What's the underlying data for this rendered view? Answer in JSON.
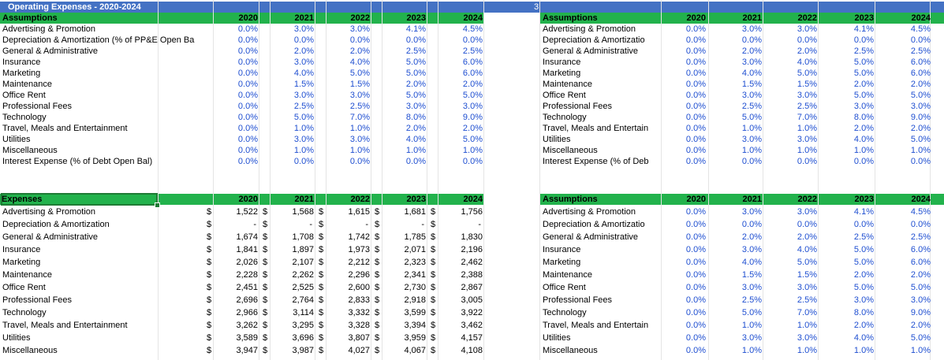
{
  "title": "Operating Expenses - 2020-2024",
  "column_marker": "3",
  "years": [
    "2020",
    "2021",
    "2022",
    "2023",
    "2024"
  ],
  "top_left": {
    "header": "Assumptions",
    "rows": [
      {
        "label": "Advertising & Promotion",
        "values": [
          "0.0%",
          "3.0%",
          "3.0%",
          "4.1%",
          "4.5%"
        ]
      },
      {
        "label": "Depreciation & Amortization (% of PP&E Open Ba",
        "values": [
          "0.0%",
          "0.0%",
          "0.0%",
          "0.0%",
          "0.0%"
        ]
      },
      {
        "label": "General & Administrative",
        "values": [
          "0.0%",
          "2.0%",
          "2.0%",
          "2.5%",
          "2.5%"
        ]
      },
      {
        "label": "Insurance",
        "values": [
          "0.0%",
          "3.0%",
          "4.0%",
          "5.0%",
          "6.0%"
        ]
      },
      {
        "label": "Marketing",
        "values": [
          "0.0%",
          "4.0%",
          "5.0%",
          "5.0%",
          "6.0%"
        ]
      },
      {
        "label": "Maintenance",
        "values": [
          "0.0%",
          "1.5%",
          "1.5%",
          "2.0%",
          "2.0%"
        ]
      },
      {
        "label": "Office Rent",
        "values": [
          "0.0%",
          "3.0%",
          "3.0%",
          "5.0%",
          "5.0%"
        ]
      },
      {
        "label": "Professional Fees",
        "values": [
          "0.0%",
          "2.5%",
          "2.5%",
          "3.0%",
          "3.0%"
        ]
      },
      {
        "label": "Technology",
        "values": [
          "0.0%",
          "5.0%",
          "7.0%",
          "8.0%",
          "9.0%"
        ]
      },
      {
        "label": "Travel, Meals and Entertainment",
        "values": [
          "0.0%",
          "1.0%",
          "1.0%",
          "2.0%",
          "2.0%"
        ]
      },
      {
        "label": "Utilities",
        "values": [
          "0.0%",
          "3.0%",
          "3.0%",
          "4.0%",
          "5.0%"
        ]
      },
      {
        "label": "Miscellaneous",
        "values": [
          "0.0%",
          "1.0%",
          "1.0%",
          "1.0%",
          "1.0%"
        ]
      },
      {
        "label": "Interest Expense (% of Debt Open Bal)",
        "values": [
          "0.0%",
          "0.0%",
          "0.0%",
          "0.0%",
          "0.0%"
        ]
      }
    ]
  },
  "top_right": {
    "header": "Assumptions",
    "rows": [
      {
        "label": "Advertising & Promotion",
        "values": [
          "0.0%",
          "3.0%",
          "3.0%",
          "4.1%",
          "4.5%"
        ]
      },
      {
        "label": "Depreciation & Amortizatio",
        "values": [
          "0.0%",
          "0.0%",
          "0.0%",
          "0.0%",
          "0.0%"
        ]
      },
      {
        "label": "General & Administrative",
        "values": [
          "0.0%",
          "2.0%",
          "2.0%",
          "2.5%",
          "2.5%"
        ]
      },
      {
        "label": "Insurance",
        "values": [
          "0.0%",
          "3.0%",
          "4.0%",
          "5.0%",
          "6.0%"
        ]
      },
      {
        "label": "Marketing",
        "values": [
          "0.0%",
          "4.0%",
          "5.0%",
          "5.0%",
          "6.0%"
        ]
      },
      {
        "label": "Maintenance",
        "values": [
          "0.0%",
          "1.5%",
          "1.5%",
          "2.0%",
          "2.0%"
        ]
      },
      {
        "label": "Office Rent",
        "values": [
          "0.0%",
          "3.0%",
          "3.0%",
          "5.0%",
          "5.0%"
        ]
      },
      {
        "label": "Professional Fees",
        "values": [
          "0.0%",
          "2.5%",
          "2.5%",
          "3.0%",
          "3.0%"
        ]
      },
      {
        "label": "Technology",
        "values": [
          "0.0%",
          "5.0%",
          "7.0%",
          "8.0%",
          "9.0%"
        ]
      },
      {
        "label": "Travel, Meals and Entertain",
        "values": [
          "0.0%",
          "1.0%",
          "1.0%",
          "2.0%",
          "2.0%"
        ]
      },
      {
        "label": "Utilities",
        "values": [
          "0.0%",
          "3.0%",
          "3.0%",
          "4.0%",
          "5.0%"
        ]
      },
      {
        "label": "Miscellaneous",
        "values": [
          "0.0%",
          "1.0%",
          "1.0%",
          "1.0%",
          "1.0%"
        ]
      },
      {
        "label": "Interest Expense (% of Deb",
        "values": [
          "0.0%",
          "0.0%",
          "0.0%",
          "0.0%",
          "0.0%"
        ]
      }
    ]
  },
  "bottom_left": {
    "header": "Expenses",
    "currency": "$",
    "rows": [
      {
        "label": "Advertising & Promotion",
        "values": [
          "1,522",
          "1,568",
          "1,615",
          "1,681",
          "1,756"
        ]
      },
      {
        "label": "Depreciation & Amortization",
        "values": [
          "-",
          "-",
          "-",
          "-",
          "-"
        ]
      },
      {
        "label": "General & Administrative",
        "values": [
          "1,674",
          "1,708",
          "1,742",
          "1,785",
          "1,830"
        ]
      },
      {
        "label": "Insurance",
        "values": [
          "1,841",
          "1,897",
          "1,973",
          "2,071",
          "2,196"
        ]
      },
      {
        "label": "Marketing",
        "values": [
          "2,026",
          "2,107",
          "2,212",
          "2,323",
          "2,462"
        ]
      },
      {
        "label": "Maintenance",
        "values": [
          "2,228",
          "2,262",
          "2,296",
          "2,341",
          "2,388"
        ]
      },
      {
        "label": "Office Rent",
        "values": [
          "2,451",
          "2,525",
          "2,600",
          "2,730",
          "2,867"
        ]
      },
      {
        "label": "Professional Fees",
        "values": [
          "2,696",
          "2,764",
          "2,833",
          "2,918",
          "3,005"
        ]
      },
      {
        "label": "Technology",
        "values": [
          "2,966",
          "3,114",
          "3,332",
          "3,599",
          "3,922"
        ]
      },
      {
        "label": "Travel, Meals and Entertainment",
        "values": [
          "3,262",
          "3,295",
          "3,328",
          "3,394",
          "3,462"
        ]
      },
      {
        "label": "Utilities",
        "values": [
          "3,589",
          "3,696",
          "3,807",
          "3,959",
          "4,157"
        ]
      },
      {
        "label": "Miscellaneous",
        "values": [
          "3,947",
          "3,987",
          "4,027",
          "4,067",
          "4,108"
        ]
      }
    ]
  },
  "bottom_right": {
    "header": "Assumptions",
    "rows": [
      {
        "label": "Advertising & Promotion",
        "values": [
          "0.0%",
          "3.0%",
          "3.0%",
          "4.1%",
          "4.5%"
        ]
      },
      {
        "label": "Depreciation & Amortizatio",
        "values": [
          "0.0%",
          "0.0%",
          "0.0%",
          "0.0%",
          "0.0%"
        ]
      },
      {
        "label": "General & Administrative",
        "values": [
          "0.0%",
          "2.0%",
          "2.0%",
          "2.5%",
          "2.5%"
        ]
      },
      {
        "label": "Insurance",
        "values": [
          "0.0%",
          "3.0%",
          "4.0%",
          "5.0%",
          "6.0%"
        ]
      },
      {
        "label": "Marketing",
        "values": [
          "0.0%",
          "4.0%",
          "5.0%",
          "5.0%",
          "6.0%"
        ]
      },
      {
        "label": "Maintenance",
        "values": [
          "0.0%",
          "1.5%",
          "1.5%",
          "2.0%",
          "2.0%"
        ]
      },
      {
        "label": "Office Rent",
        "values": [
          "0.0%",
          "3.0%",
          "3.0%",
          "5.0%",
          "5.0%"
        ]
      },
      {
        "label": "Professional Fees",
        "values": [
          "0.0%",
          "2.5%",
          "2.5%",
          "3.0%",
          "3.0%"
        ]
      },
      {
        "label": "Technology",
        "values": [
          "0.0%",
          "5.0%",
          "7.0%",
          "8.0%",
          "9.0%"
        ]
      },
      {
        "label": "Travel, Meals and Entertain",
        "values": [
          "0.0%",
          "1.0%",
          "1.0%",
          "2.0%",
          "2.0%"
        ]
      },
      {
        "label": "Utilities",
        "values": [
          "0.0%",
          "3.0%",
          "3.0%",
          "4.0%",
          "5.0%"
        ]
      },
      {
        "label": "Miscellaneous",
        "values": [
          "0.0%",
          "1.0%",
          "1.0%",
          "1.0%",
          "1.0%"
        ]
      }
    ]
  },
  "colors": {
    "title_band": "#4472c4",
    "header_band": "#22b24c",
    "input_value": "#1f4fd1",
    "selection": "#1e7b34"
  }
}
